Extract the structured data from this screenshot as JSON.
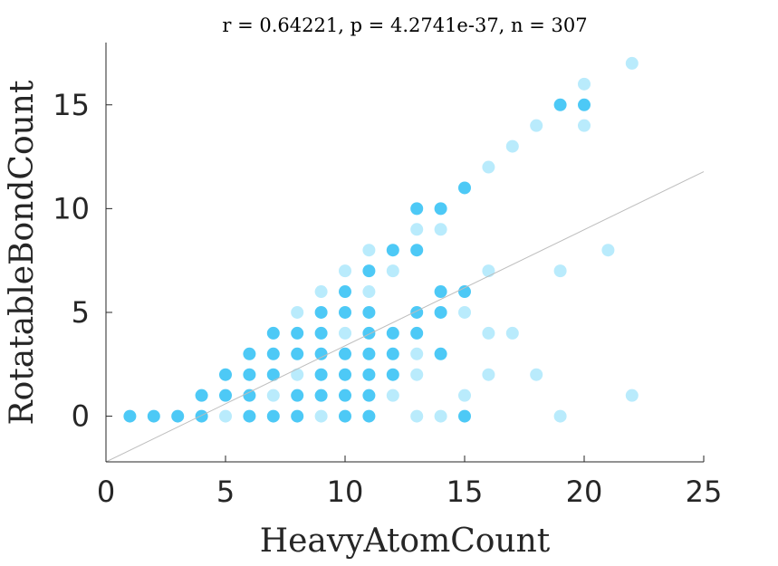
{
  "chart_data": {
    "type": "scatter",
    "title": "r = 0.64221, p = 4.2741e-37, n = 307",
    "xlabel": "HeavyAtomCount",
    "ylabel": "RotatableBondCount",
    "xlim": [
      0,
      25
    ],
    "ylim": [
      -2.2,
      18
    ],
    "xticks": [
      0,
      5,
      10,
      15,
      20,
      25
    ],
    "yticks": [
      0,
      5,
      10,
      15
    ],
    "grid": false,
    "legend": "none",
    "colors": {
      "dense": "#4dc9f6",
      "light": "#b9ebfc",
      "fit_line": "#bdbdbd"
    },
    "fit_line": {
      "slope": 0.5592,
      "intercept": -2.2
    },
    "points": [
      {
        "x": 1,
        "y": 0,
        "density": "dense"
      },
      {
        "x": 2,
        "y": 0,
        "density": "dense"
      },
      {
        "x": 3,
        "y": 0,
        "density": "dense"
      },
      {
        "x": 4,
        "y": 0,
        "density": "dense"
      },
      {
        "x": 4,
        "y": 1,
        "density": "dense"
      },
      {
        "x": 5,
        "y": 0,
        "density": "light"
      },
      {
        "x": 5,
        "y": 1,
        "density": "dense"
      },
      {
        "x": 5,
        "y": 2,
        "density": "dense"
      },
      {
        "x": 6,
        "y": 0,
        "density": "dense"
      },
      {
        "x": 6,
        "y": 1,
        "density": "dense"
      },
      {
        "x": 6,
        "y": 2,
        "density": "dense"
      },
      {
        "x": 6,
        "y": 3,
        "density": "dense"
      },
      {
        "x": 7,
        "y": 0,
        "density": "dense"
      },
      {
        "x": 7,
        "y": 1,
        "density": "light"
      },
      {
        "x": 7,
        "y": 2,
        "density": "dense"
      },
      {
        "x": 7,
        "y": 3,
        "density": "dense"
      },
      {
        "x": 7,
        "y": 4,
        "density": "dense"
      },
      {
        "x": 8,
        "y": 0,
        "density": "dense"
      },
      {
        "x": 8,
        "y": 1,
        "density": "dense"
      },
      {
        "x": 8,
        "y": 2,
        "density": "light"
      },
      {
        "x": 8,
        "y": 3,
        "density": "dense"
      },
      {
        "x": 8,
        "y": 4,
        "density": "dense"
      },
      {
        "x": 8,
        "y": 5,
        "density": "light"
      },
      {
        "x": 9,
        "y": 0,
        "density": "light"
      },
      {
        "x": 9,
        "y": 1,
        "density": "dense"
      },
      {
        "x": 9,
        "y": 2,
        "density": "dense"
      },
      {
        "x": 9,
        "y": 3,
        "density": "dense"
      },
      {
        "x": 9,
        "y": 4,
        "density": "dense"
      },
      {
        "x": 9,
        "y": 5,
        "density": "dense"
      },
      {
        "x": 9,
        "y": 6,
        "density": "light"
      },
      {
        "x": 10,
        "y": 0,
        "density": "dense"
      },
      {
        "x": 10,
        "y": 1,
        "density": "dense"
      },
      {
        "x": 10,
        "y": 2,
        "density": "dense"
      },
      {
        "x": 10,
        "y": 3,
        "density": "dense"
      },
      {
        "x": 10,
        "y": 4,
        "density": "light"
      },
      {
        "x": 10,
        "y": 5,
        "density": "dense"
      },
      {
        "x": 10,
        "y": 6,
        "density": "dense"
      },
      {
        "x": 10,
        "y": 7,
        "density": "light"
      },
      {
        "x": 11,
        "y": 0,
        "density": "dense"
      },
      {
        "x": 11,
        "y": 1,
        "density": "dense"
      },
      {
        "x": 11,
        "y": 2,
        "density": "dense"
      },
      {
        "x": 11,
        "y": 3,
        "density": "dense"
      },
      {
        "x": 11,
        "y": 4,
        "density": "dense"
      },
      {
        "x": 11,
        "y": 5,
        "density": "dense"
      },
      {
        "x": 11,
        "y": 6,
        "density": "light"
      },
      {
        "x": 11,
        "y": 7,
        "density": "dense"
      },
      {
        "x": 11,
        "y": 8,
        "density": "light"
      },
      {
        "x": 12,
        "y": 1,
        "density": "light"
      },
      {
        "x": 12,
        "y": 2,
        "density": "dense"
      },
      {
        "x": 12,
        "y": 3,
        "density": "dense"
      },
      {
        "x": 12,
        "y": 4,
        "density": "dense"
      },
      {
        "x": 12,
        "y": 7,
        "density": "light"
      },
      {
        "x": 12,
        "y": 8,
        "density": "dense"
      },
      {
        "x": 13,
        "y": 0,
        "density": "light"
      },
      {
        "x": 13,
        "y": 2,
        "density": "light"
      },
      {
        "x": 13,
        "y": 3,
        "density": "light"
      },
      {
        "x": 13,
        "y": 4,
        "density": "dense"
      },
      {
        "x": 13,
        "y": 5,
        "density": "dense"
      },
      {
        "x": 13,
        "y": 8,
        "density": "dense"
      },
      {
        "x": 13,
        "y": 9,
        "density": "light"
      },
      {
        "x": 13,
        "y": 10,
        "density": "dense"
      },
      {
        "x": 14,
        "y": 0,
        "density": "light"
      },
      {
        "x": 14,
        "y": 3,
        "density": "dense"
      },
      {
        "x": 14,
        "y": 5,
        "density": "dense"
      },
      {
        "x": 14,
        "y": 6,
        "density": "dense"
      },
      {
        "x": 14,
        "y": 9,
        "density": "light"
      },
      {
        "x": 14,
        "y": 10,
        "density": "dense"
      },
      {
        "x": 15,
        "y": 0,
        "density": "dense"
      },
      {
        "x": 15,
        "y": 1,
        "density": "light"
      },
      {
        "x": 15,
        "y": 5,
        "density": "light"
      },
      {
        "x": 15,
        "y": 6,
        "density": "dense"
      },
      {
        "x": 15,
        "y": 11,
        "density": "dense"
      },
      {
        "x": 16,
        "y": 2,
        "density": "light"
      },
      {
        "x": 16,
        "y": 4,
        "density": "light"
      },
      {
        "x": 16,
        "y": 7,
        "density": "light"
      },
      {
        "x": 16,
        "y": 12,
        "density": "light"
      },
      {
        "x": 17,
        "y": 4,
        "density": "light"
      },
      {
        "x": 17,
        "y": 13,
        "density": "light"
      },
      {
        "x": 18,
        "y": 2,
        "density": "light"
      },
      {
        "x": 18,
        "y": 14,
        "density": "light"
      },
      {
        "x": 19,
        "y": 0,
        "density": "light"
      },
      {
        "x": 19,
        "y": 7,
        "density": "light"
      },
      {
        "x": 19,
        "y": 15,
        "density": "dense"
      },
      {
        "x": 20,
        "y": 14,
        "density": "light"
      },
      {
        "x": 20,
        "y": 15,
        "density": "dense"
      },
      {
        "x": 20,
        "y": 16,
        "density": "light"
      },
      {
        "x": 21,
        "y": 8,
        "density": "light"
      },
      {
        "x": 22,
        "y": 1,
        "density": "light"
      },
      {
        "x": 22,
        "y": 17,
        "density": "light"
      }
    ]
  }
}
